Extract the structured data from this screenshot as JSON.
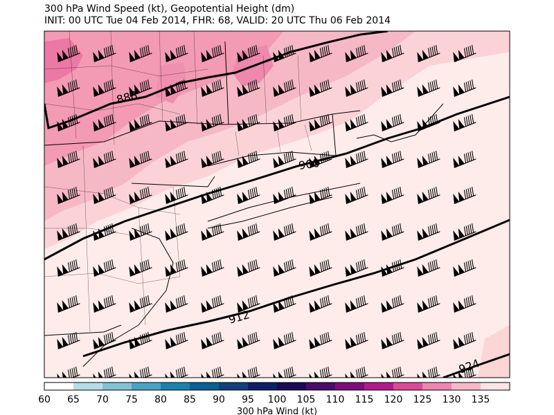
{
  "title": {
    "line1": "300 hPa Wind Speed (kt), Geopotential Height (dm)",
    "line2": "INIT: 00 UTC Tue 04 Feb 2014, FHR: 68, VALID: 20 UTC Thu 06 Feb 2014"
  },
  "contour_labels": [
    "888",
    "900",
    "912",
    "924"
  ],
  "colorbar": {
    "label": "300 hPa Wind (kt)",
    "ticks": [
      "60",
      "65",
      "70",
      "75",
      "80",
      "85",
      "90",
      "95",
      "100",
      "105",
      "110",
      "115",
      "120",
      "125",
      "130",
      "135"
    ],
    "colors": [
      "#ffffff",
      "#b9dbe8",
      "#83c2d6",
      "#4aa3c4",
      "#1b82ad",
      "#0a5f93",
      "#123f7c",
      "#0d1f66",
      "#1a0a55",
      "#4a0b6b",
      "#7b0f7e",
      "#b11a8c",
      "#da4a98",
      "#ee85b0",
      "#f7b9c8",
      "#fde4e4"
    ]
  },
  "colors": {
    "background_fill": "#feecea",
    "pink_light": "#f9c8cf",
    "pink_mid": "#f3a9bc",
    "pink_strong": "#ee82aa",
    "pink_deep": "#e85a98"
  }
}
